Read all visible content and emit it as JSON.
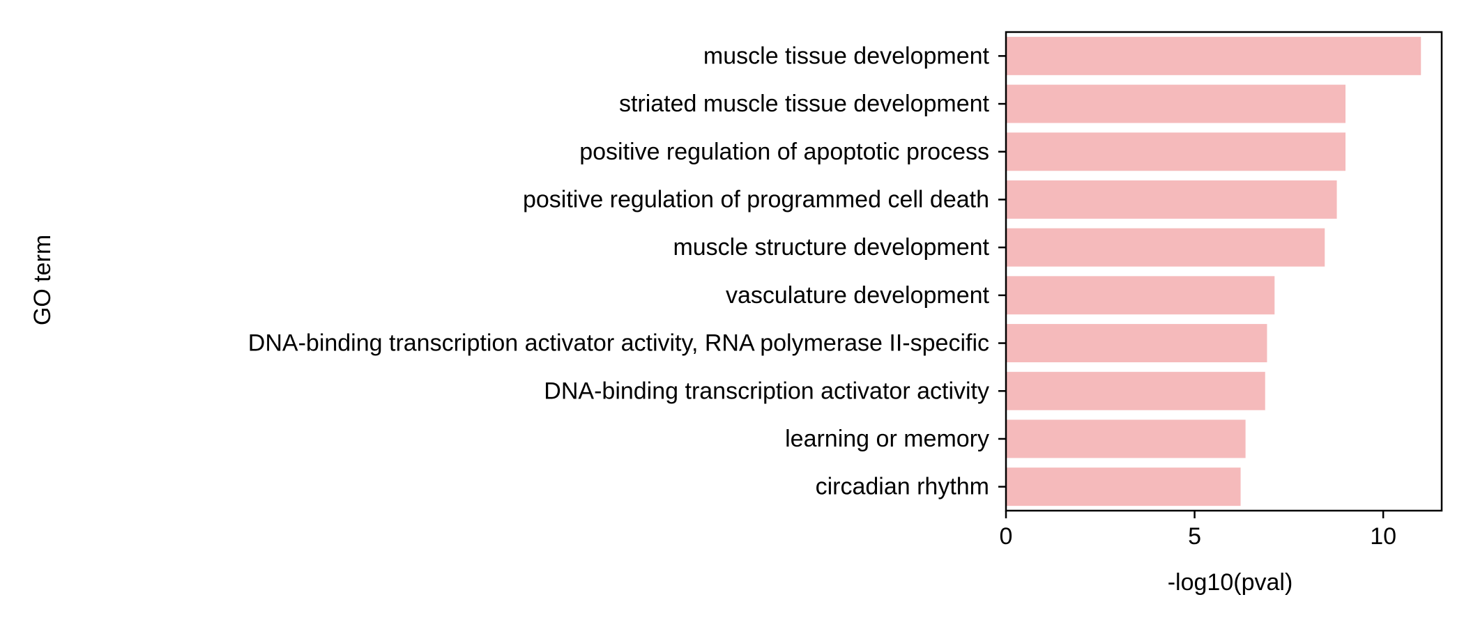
{
  "chart_data": {
    "type": "bar",
    "orientation": "horizontal",
    "categories": [
      "muscle tissue development",
      "striated muscle tissue development",
      "positive regulation of apoptotic process",
      "positive regulation of programmed cell death",
      "muscle structure development",
      "vasculature development",
      "DNA-binding transcription activator activity, RNA polymerase II-specific",
      "DNA-binding transcription activator activity",
      "learning or memory",
      "circadian rhythm"
    ],
    "values": [
      11.0,
      9.0,
      9.0,
      8.77,
      8.45,
      7.12,
      6.92,
      6.87,
      6.35,
      6.22
    ],
    "xlabel": "-log10(pval)",
    "ylabel": "GO term",
    "xlim": [
      0,
      11.55
    ],
    "xticks": [
      0,
      5,
      10
    ],
    "xtick_labels": [
      "0",
      "5",
      "10"
    ],
    "bar_color": "#f5babb",
    "grid": false,
    "legend": "none"
  }
}
